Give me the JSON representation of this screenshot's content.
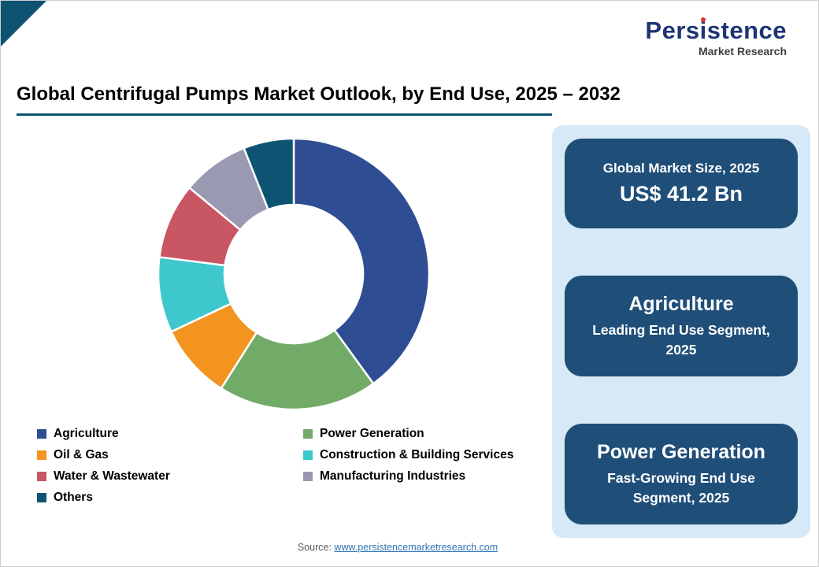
{
  "logo": {
    "brand_pre": "Pers",
    "brand_i": "i",
    "brand_post": "stence",
    "subtitle": "Market Research"
  },
  "title": "Global Centrifugal Pumps Market Outlook, by End Use, 2025 – 2032",
  "chart_data": {
    "type": "pie",
    "variant": "donut",
    "start_angle": "top",
    "direction": "clockwise",
    "inner_radius_ratio": 0.51,
    "values_estimated_from_angles": true,
    "segments": [
      {
        "label": "Agriculture",
        "value_pct": 40,
        "color": "#2e4d92"
      },
      {
        "label": "Power Generation",
        "value_pct": 19,
        "color": "#72ab68"
      },
      {
        "label": "Oil & Gas",
        "value_pct": 9,
        "color": "#f2941f"
      },
      {
        "label": "Construction & Building Services",
        "value_pct": 9,
        "color": "#3ec8ce"
      },
      {
        "label": "Water & Wastewater",
        "value_pct": 9,
        "color": "#c95663"
      },
      {
        "label": "Manufacturing Industries",
        "value_pct": 8,
        "color": "#9a99b2"
      },
      {
        "label": "Others",
        "value_pct": 6,
        "color": "#0e5472"
      }
    ],
    "legend_position": "bottom-left"
  },
  "panel": {
    "cards": [
      {
        "label": "Global Market Size, 2025",
        "value": "US$ 41.2 Bn"
      },
      {
        "title": "Agriculture",
        "subtitle": "Leading End Use Segment, 2025"
      },
      {
        "title": "Power Generation",
        "subtitle": "Fast-Growing End Use Segment, 2025"
      }
    ]
  },
  "footer": {
    "label": "Source:",
    "link": "www.persistencemarketresearch.com"
  }
}
